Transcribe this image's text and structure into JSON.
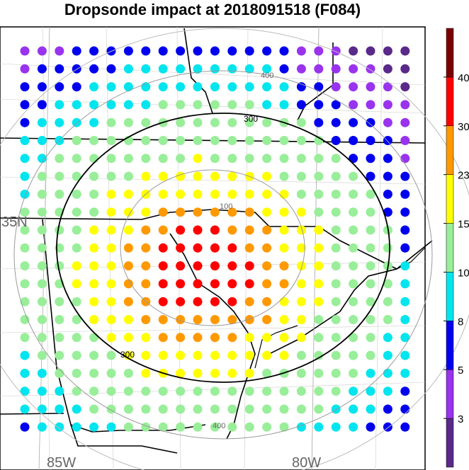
{
  "title": "Dropsonde impact at 2018091518 (F084)",
  "map_labels": {
    "lat_label": "35N",
    "lon_left": "85W",
    "lon_right": "80W"
  },
  "contours": {
    "inner_label": "100",
    "middle_label": "300",
    "outer_label": "400",
    "inner_color": "#888888",
    "range_color": "#000000"
  },
  "colorbar": {
    "tick_labels": [
      "3",
      "5",
      "8",
      "10",
      "15",
      "23",
      "30",
      "40"
    ],
    "bins": [
      {
        "color": "#5a2a8a"
      },
      {
        "color": "#9933ee"
      },
      {
        "color": "#0000ee"
      },
      {
        "color": "#00e5ee"
      },
      {
        "color": "#99ee99"
      },
      {
        "color": "#ffff00"
      },
      {
        "color": "#ff9900"
      },
      {
        "color": "#ff0000"
      },
      {
        "color": "#7a0000"
      }
    ]
  },
  "dots": {
    "codes": "_ABbBA_ABb_____bBaBBCBB_____________BBb____"
  }
}
